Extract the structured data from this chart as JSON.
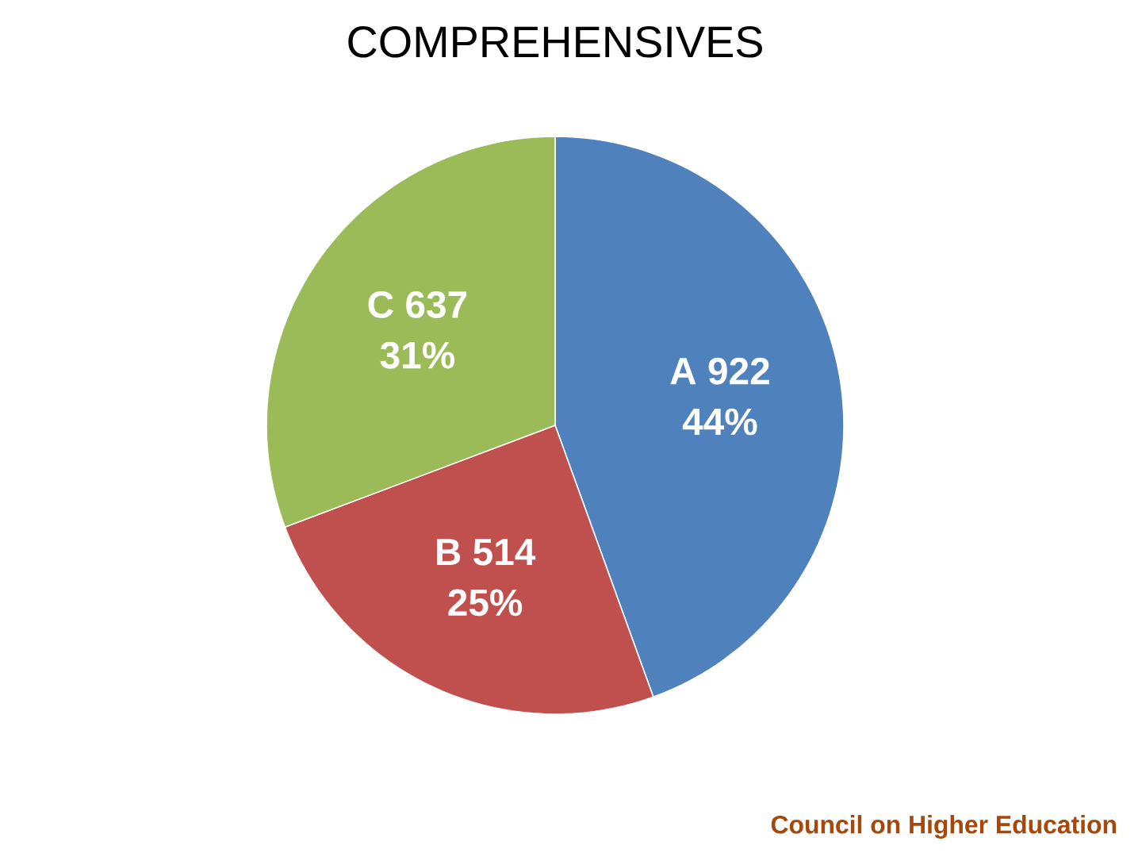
{
  "chart_data": {
    "type": "pie",
    "title": "COMPREHENSIVES",
    "categories": [
      "A",
      "B",
      "C"
    ],
    "values": [
      922,
      514,
      637
    ],
    "colors": [
      "#4f81bd",
      "#c0504d",
      "#9bbb59"
    ],
    "data_labels": true,
    "annotations": [
      "44%",
      "25%",
      "31%",
      "Council on Higher Education"
    ]
  }
}
